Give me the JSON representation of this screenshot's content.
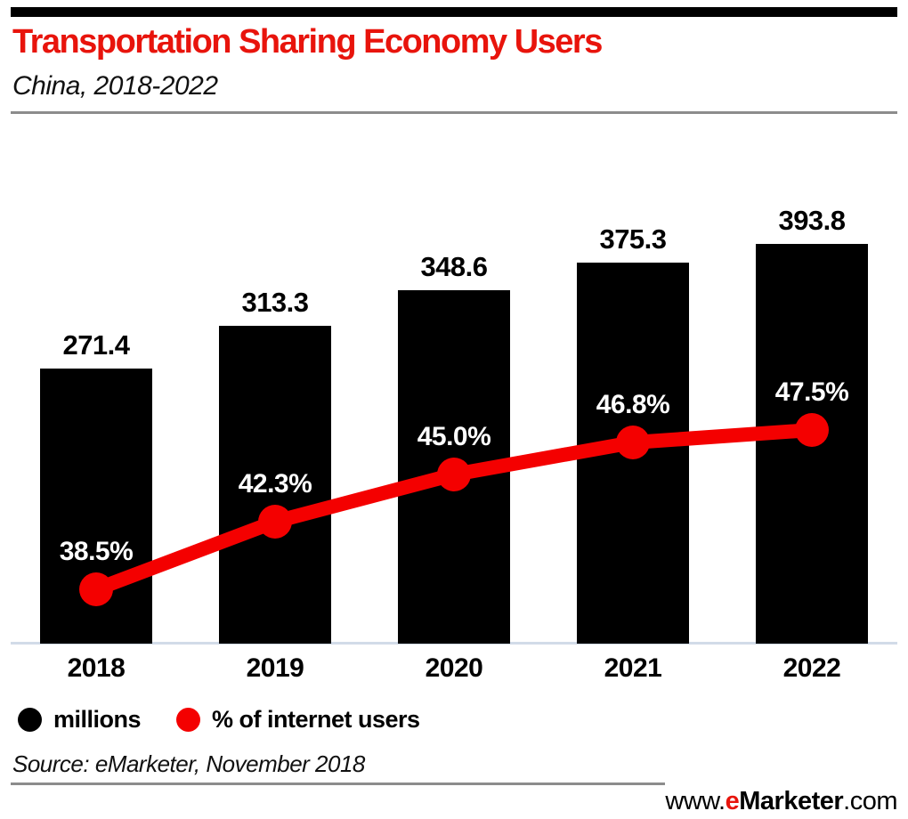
{
  "header": {
    "title": "Transportation Sharing Economy Users",
    "subtitle": "China, 2018-2022"
  },
  "chart_data": {
    "type": "bar",
    "subtype": "bar-line-combo",
    "title": "Transportation Sharing Economy Users",
    "subtitle": "China, 2018-2022",
    "categories": [
      "2018",
      "2019",
      "2020",
      "2021",
      "2022"
    ],
    "series": [
      {
        "name": "millions",
        "type": "bar",
        "color": "#000000",
        "values": [
          271.4,
          313.3,
          348.6,
          375.3,
          393.8
        ],
        "labels": [
          "271.4",
          "313.3",
          "348.6",
          "375.3",
          "393.8"
        ]
      },
      {
        "name": "% of internet users",
        "type": "line",
        "color": "#f40000",
        "values": [
          38.5,
          42.3,
          45.0,
          46.8,
          47.5
        ],
        "labels": [
          "38.5%",
          "42.3%",
          "45.0%",
          "46.8%",
          "47.5%"
        ]
      }
    ],
    "xlabel": "",
    "ylabel": "",
    "bar_axis_range": [
      0,
      520
    ],
    "pct_axis_range": [
      35,
      51
    ],
    "grid": false,
    "legend_position": "bottom-left"
  },
  "legend": {
    "items": [
      {
        "label": "millions",
        "color": "#000000"
      },
      {
        "label": "% of internet users",
        "color": "#f40000"
      }
    ]
  },
  "source_note": "Source: eMarketer, November 2018",
  "footer": {
    "www": "www.",
    "brand_e": "e",
    "brand_rest": "Marketer",
    "domain": ".com"
  },
  "colors": {
    "title_red": "#e8140c",
    "line_red": "#f40000",
    "bar_black": "#000000",
    "rule_gray": "#8c8c8c",
    "baseline_blue": "#d2dbe8"
  }
}
